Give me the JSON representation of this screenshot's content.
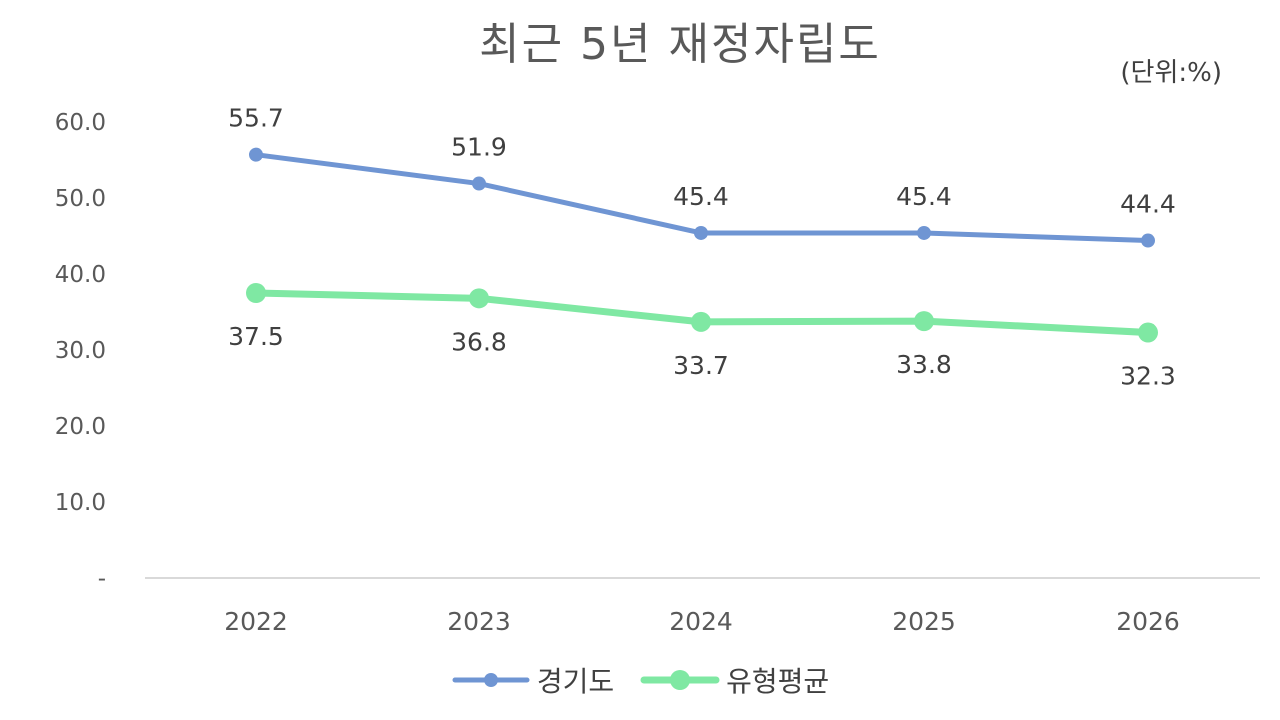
{
  "chart_data": {
    "type": "line",
    "title": "최근 5년 재정자립도",
    "unit_label": "(단위:%)",
    "categories": [
      "2022",
      "2023",
      "2024",
      "2025",
      "2026"
    ],
    "series": [
      {
        "name": "경기도",
        "values": [
          55.7,
          51.9,
          45.4,
          45.4,
          44.4
        ],
        "color": "#6f95d3",
        "labels": [
          "55.7",
          "51.9",
          "45.4",
          "45.4",
          "44.4"
        ],
        "label_position": "above"
      },
      {
        "name": "유형평균",
        "values": [
          37.5,
          36.8,
          33.7,
          33.8,
          32.3
        ],
        "color": "#7fe8a3",
        "labels": [
          "37.5",
          "36.8",
          "33.7",
          "33.8",
          "32.3"
        ],
        "label_position": "below"
      }
    ],
    "ylim": [
      0,
      60
    ],
    "yticks": [
      0,
      10,
      20,
      30,
      40,
      50,
      60
    ],
    "ytick_labels": [
      "-",
      "10.0",
      "20.0",
      "30.0",
      "40.0",
      "50.0",
      "60.0"
    ],
    "grid": false,
    "legend_position": "bottom"
  }
}
